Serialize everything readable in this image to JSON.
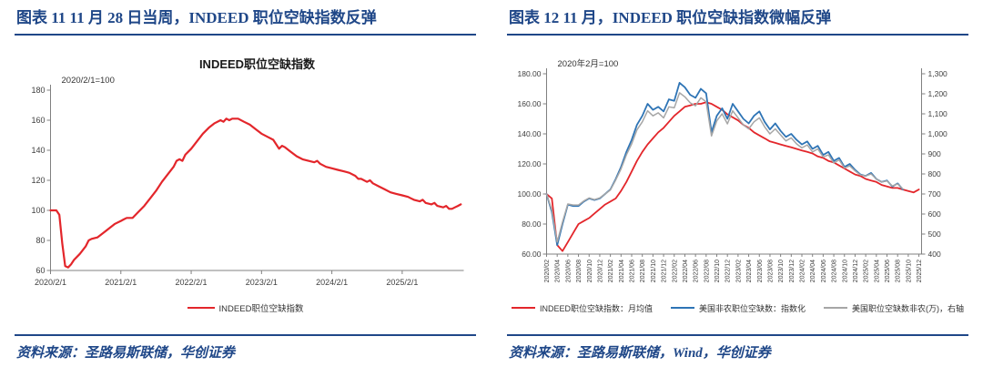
{
  "panels": [
    {
      "header": "图表 11  11 月 28 日当周，INDEED 职位空缺指数反弹",
      "source": "资料来源：圣路易斯联储，华创证券"
    },
    {
      "header": "图表 12  11 月，INDEED 职位空缺指数微幅反弹",
      "source": "资料来源：圣路易斯联储，Wind，华创证券"
    }
  ],
  "colors": {
    "accent_navy": "#1f4788",
    "red_line": "#e3262b",
    "blue_line": "#2e74b5",
    "gray_line": "#a6a6a6",
    "axis": "#808080",
    "tick_text": "#404040"
  },
  "chart_data": [
    {
      "type": "line",
      "title": "INDEED职位空缺指数",
      "annotation": "2020/2/1=100",
      "x_unit": "months since 2020/02, weekly index data",
      "xlim": [
        0,
        70.5
      ],
      "ylim": [
        60,
        180
      ],
      "grid": false,
      "legend_position": "bottom",
      "y_ticks": [
        {
          "v": 60,
          "label": "60"
        },
        {
          "v": 80,
          "label": "80"
        },
        {
          "v": 100,
          "label": "100"
        },
        {
          "v": 120,
          "label": "120"
        },
        {
          "v": 140,
          "label": "140"
        },
        {
          "v": 160,
          "label": "160"
        },
        {
          "v": 180,
          "label": "180"
        }
      ],
      "x_ticks": [
        {
          "pos": 0,
          "label": "2020/2/1"
        },
        {
          "pos": 12,
          "label": "2021/2/1"
        },
        {
          "pos": 24,
          "label": "2022/2/1"
        },
        {
          "pos": 36,
          "label": "2023/2/1"
        },
        {
          "pos": 48,
          "label": "2024/2/1"
        },
        {
          "pos": 60,
          "label": "2025/2/1"
        }
      ],
      "series": [
        {
          "name": "INDEED职位空缺指数",
          "color": "#e3262b",
          "width": 2.2,
          "x": [
            0,
            1,
            1.5,
            2,
            2.5,
            3,
            3.5,
            4,
            5,
            6,
            6.5,
            7,
            8,
            9,
            10,
            11,
            12,
            12.5,
            13,
            14,
            15,
            16,
            17,
            18,
            19,
            20,
            21,
            21.5,
            22,
            22.5,
            23,
            24,
            25,
            26,
            27,
            28,
            29,
            29.5,
            30,
            30.5,
            31,
            32,
            33,
            34,
            35,
            36,
            37,
            38,
            38.5,
            39,
            39.5,
            40,
            41,
            42,
            43,
            44,
            45,
            45.5,
            46,
            47,
            48,
            49,
            50,
            51,
            52,
            52.5,
            53,
            54,
            54.5,
            55,
            56,
            57,
            58,
            59,
            60,
            61,
            61.5,
            62,
            63,
            63.5,
            64,
            65,
            65.5,
            66,
            67,
            67.5,
            68,
            68.5,
            69,
            69.5,
            70
          ],
          "values": [
            100,
            100,
            97,
            78,
            63,
            62,
            64,
            67,
            71,
            76,
            80,
            81,
            82,
            85,
            88,
            91,
            93,
            94,
            95,
            95,
            99,
            103,
            108,
            113,
            119,
            124,
            129,
            133,
            134,
            133,
            137,
            141,
            146,
            151,
            155,
            158,
            160,
            159,
            161,
            160,
            161,
            161,
            159,
            157,
            154,
            151,
            149,
            147,
            144,
            141,
            143,
            142,
            139,
            136,
            134,
            133,
            132,
            133,
            131,
            129,
            128,
            127,
            126,
            125,
            123,
            121,
            121,
            119,
            120,
            118,
            116,
            114,
            112,
            111,
            110,
            109,
            108,
            107,
            106,
            107,
            105,
            104,
            105,
            103,
            102,
            103,
            101,
            101,
            102,
            103,
            104
          ]
        }
      ]
    },
    {
      "type": "line",
      "title": "",
      "annotation": "2020年2月=100",
      "x_unit": "monthly, 2020/02 through 2025/12",
      "xlim": [
        0,
        70.5
      ],
      "ylim_left": [
        60,
        180
      ],
      "ylim_right": [
        400,
        1300
      ],
      "grid": false,
      "legend_position": "bottom",
      "y_ticks_left": [
        {
          "v": 60,
          "label": "60.00"
        },
        {
          "v": 80,
          "label": "80.00"
        },
        {
          "v": 100,
          "label": "100.00"
        },
        {
          "v": 120,
          "label": "120.00"
        },
        {
          "v": 140,
          "label": "140.00"
        },
        {
          "v": 160,
          "label": "160.00"
        },
        {
          "v": 180,
          "label": "180.00"
        }
      ],
      "y_ticks_right": [
        {
          "v": 400,
          "label": "400"
        },
        {
          "v": 500,
          "label": "500"
        },
        {
          "v": 600,
          "label": "600"
        },
        {
          "v": 700,
          "label": "700"
        },
        {
          "v": 800,
          "label": "800"
        },
        {
          "v": 900,
          "label": "900"
        },
        {
          "v": 1000,
          "label": "1,000"
        },
        {
          "v": 1100,
          "label": "1,100"
        },
        {
          "v": 1200,
          "label": "1,200"
        },
        {
          "v": 1300,
          "label": "1,300"
        }
      ],
      "x_tick_labels": [
        "2020/02",
        "2020/04",
        "2020/06",
        "2020/08",
        "2020/10",
        "2020/12",
        "2021/02",
        "2021/04",
        "2021/06",
        "2021/08",
        "2021/10",
        "2021/12",
        "2022/02",
        "2022/04",
        "2022/06",
        "2022/08",
        "2022/10",
        "2022/12",
        "2023/02",
        "2023/04",
        "2023/06",
        "2023/08",
        "2023/10",
        "2023/12",
        "2024/02",
        "2024/04",
        "2024/06",
        "2024/08",
        "2024/10",
        "2024/12",
        "2025/02",
        "2025/04",
        "2025/06",
        "2025/08",
        "2025/10",
        "2025/12"
      ],
      "series": [
        {
          "name": "INDEED职位空缺指数：月均值",
          "color": "#e3262b",
          "axis": "left",
          "width": 1.8,
          "values": [
            100,
            97,
            66,
            62,
            68,
            74,
            80,
            82,
            84,
            87,
            90,
            93,
            95,
            97,
            102,
            108,
            115,
            122,
            128,
            133,
            137,
            141,
            144,
            148,
            152,
            155,
            158,
            159,
            160,
            160,
            161,
            160,
            158,
            156,
            153,
            151,
            149,
            146,
            144,
            141,
            139,
            137,
            135,
            134,
            133,
            132,
            131,
            130,
            129,
            128,
            127,
            125,
            124,
            122,
            121,
            119,
            117,
            115,
            113,
            112,
            110,
            109,
            108,
            106,
            105,
            104,
            104,
            103,
            102,
            101,
            103
          ]
        },
        {
          "name": "美国非农职位空缺数：指数化",
          "color": "#2e74b5",
          "axis": "left",
          "width": 1.8,
          "values": [
            100,
            88,
            66,
            80,
            93,
            92,
            92,
            95,
            97,
            96,
            97,
            100,
            103,
            110,
            118,
            128,
            136,
            146,
            152,
            160,
            156,
            158,
            155,
            163,
            162,
            174,
            171,
            166,
            164,
            170,
            167,
            141,
            152,
            157,
            150,
            160,
            155,
            150,
            147,
            152,
            155,
            148,
            143,
            147,
            142,
            138,
            140,
            136,
            133,
            135,
            130,
            132,
            126,
            128,
            122,
            124,
            118,
            120,
            116,
            113,
            112,
            114,
            110,
            108,
            109,
            105,
            107,
            103,
            null,
            null,
            null
          ]
        },
        {
          "name": "美国职位空缺数非农(万)，右轴",
          "color": "#a6a6a6",
          "axis": "right",
          "width": 1.5,
          "values": [
            700,
            620,
            460,
            560,
            650,
            645,
            645,
            665,
            680,
            672,
            680,
            700,
            720,
            770,
            825,
            895,
            950,
            1020,
            1060,
            1115,
            1090,
            1105,
            1080,
            1135,
            1130,
            1205,
            1185,
            1155,
            1140,
            1180,
            1160,
            990,
            1065,
            1100,
            1050,
            1115,
            1080,
            1045,
            1025,
            1060,
            1080,
            1035,
            1000,
            1025,
            995,
            965,
            980,
            950,
            930,
            945,
            910,
            925,
            885,
            895,
            855,
            870,
            830,
            840,
            815,
            795,
            790,
            800,
            775,
            760,
            765,
            740,
            750,
            725,
            null,
            null,
            null
          ]
        }
      ]
    }
  ]
}
